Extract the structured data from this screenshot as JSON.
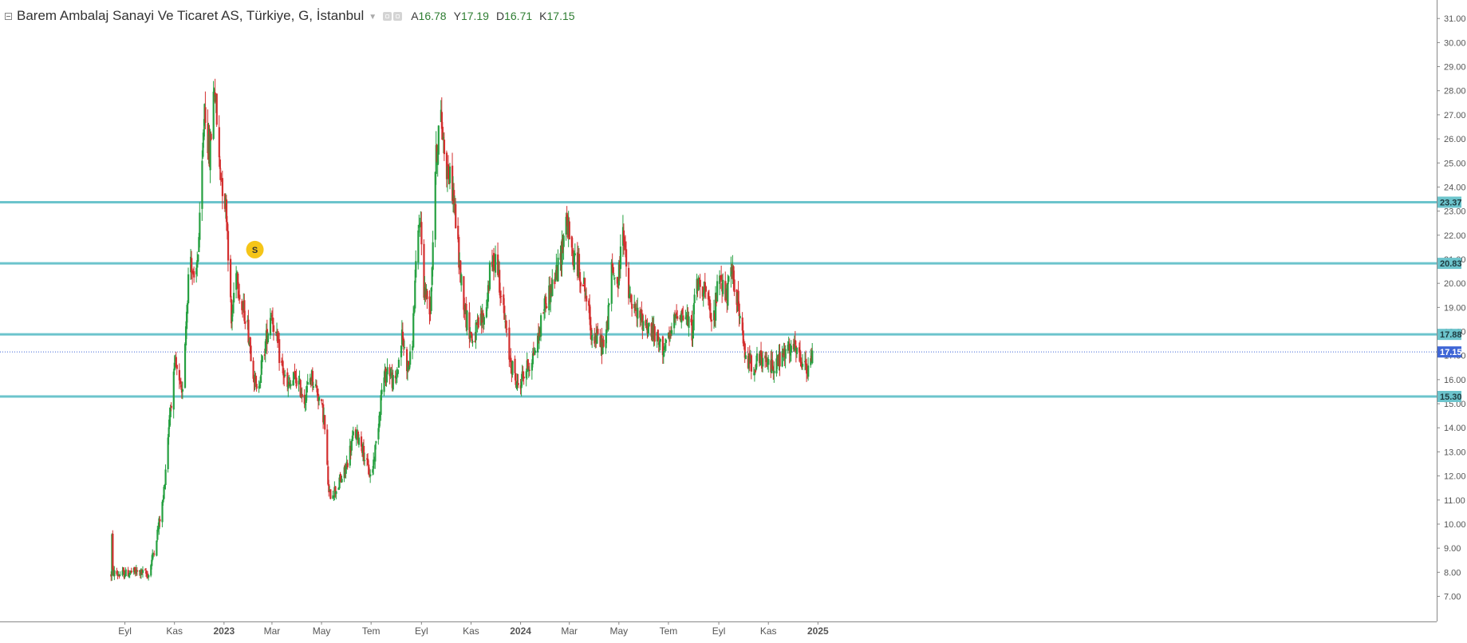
{
  "legend": {
    "title": "Barem Ambalaj Sanayi Ve Ticaret AS, Türkiye, G, İstanbul",
    "open_label": "A",
    "open": "16.78",
    "high_label": "Y",
    "high": "17.19",
    "low_label": "D",
    "low": "16.71",
    "close_label": "K",
    "close": "17.15",
    "icons": [
      "collapse-icon",
      "dropdown-caret-icon",
      "settings-icon",
      "hide-icon"
    ]
  },
  "colors": {
    "up": "#26a041",
    "down": "#d32f2f",
    "hline": "#6cc4cc",
    "last_price": "#3f66d6",
    "dividend_marker": "#f5c518",
    "axis_text": "#555555"
  },
  "chart_data": {
    "type": "candlestick",
    "title": "",
    "x_axis": {
      "tick_labels": [
        "Eyl",
        "Kas",
        "2023",
        "Mar",
        "May",
        "Tem",
        "Eyl",
        "Kas",
        "2024",
        "Mar",
        "May",
        "Tem",
        "Eyl",
        "Kas",
        "2025"
      ],
      "bold_labels": [
        "2023",
        "2024",
        "2025"
      ]
    },
    "y_axis": {
      "position": "right",
      "range": [
        6.5,
        31.6
      ],
      "tick_labels": [
        "7.00",
        "8.00",
        "9.00",
        "10.00",
        "11.00",
        "12.00",
        "13.00",
        "14.00",
        "15.00",
        "16.00",
        "17.00",
        "18.00",
        "19.00",
        "20.00",
        "21.00",
        "22.00",
        "23.00",
        "24.00",
        "25.00",
        "26.00",
        "27.00",
        "28.00",
        "29.00",
        "30.00",
        "31.00"
      ]
    },
    "horizontal_lines": [
      {
        "value": 23.37,
        "label": "23.37"
      },
      {
        "value": 20.83,
        "label": "20.83"
      },
      {
        "value": 17.88,
        "label": "17.88"
      },
      {
        "value": 15.3,
        "label": "15.30"
      }
    ],
    "last_price": {
      "value": 17.15,
      "label": "17.15"
    },
    "dividend_marker": {
      "label": "S",
      "date": "2023-02",
      "price": 21.4
    },
    "grid": false,
    "series_anchors": [
      [
        "2022-08-15",
        7.9
      ],
      [
        "2022-08-16",
        9.5
      ],
      [
        "2022-08-17",
        8.0
      ],
      [
        "2022-08-25",
        7.9
      ],
      [
        "2022-09-10",
        8.0
      ],
      [
        "2022-09-20",
        8.0
      ],
      [
        "2022-09-30",
        7.9
      ],
      [
        "2022-10-08",
        9.1
      ],
      [
        "2022-10-18",
        11.0
      ],
      [
        "2022-10-26",
        14.6
      ],
      [
        "2022-11-02",
        16.6
      ],
      [
        "2022-11-10",
        15.2
      ],
      [
        "2022-11-20",
        21.5
      ],
      [
        "2022-11-26",
        19.5
      ],
      [
        "2022-12-03",
        22.9
      ],
      [
        "2022-12-08",
        27.5
      ],
      [
        "2022-12-14",
        25.2
      ],
      [
        "2022-12-20",
        28.4
      ],
      [
        "2022-12-26",
        25.0
      ],
      [
        "2023-01-04",
        23.0
      ],
      [
        "2023-01-10",
        18.3
      ],
      [
        "2023-01-16",
        20.8
      ],
      [
        "2023-01-22",
        19.0
      ],
      [
        "2023-01-28",
        18.7
      ],
      [
        "2023-02-10",
        15.4
      ],
      [
        "2023-02-20",
        17.3
      ],
      [
        "2023-02-28",
        18.9
      ],
      [
        "2023-03-10",
        17.0
      ],
      [
        "2023-03-20",
        15.6
      ],
      [
        "2023-03-30",
        16.1
      ],
      [
        "2023-04-10",
        15.2
      ],
      [
        "2023-04-18",
        16.2
      ],
      [
        "2023-04-26",
        15.5
      ],
      [
        "2023-05-04",
        14.4
      ],
      [
        "2023-05-10",
        11.2
      ],
      [
        "2023-05-20",
        11.5
      ],
      [
        "2023-05-30",
        12.2
      ],
      [
        "2023-06-10",
        13.8
      ],
      [
        "2023-06-18",
        13.5
      ],
      [
        "2023-06-26",
        12.4
      ],
      [
        "2023-07-01",
        11.9
      ],
      [
        "2023-07-08",
        13.6
      ],
      [
        "2023-07-14",
        15.6
      ],
      [
        "2023-07-22",
        16.6
      ],
      [
        "2023-07-30",
        15.6
      ],
      [
        "2023-08-08",
        17.8
      ],
      [
        "2023-08-15",
        16.5
      ],
      [
        "2023-08-20",
        17.0
      ],
      [
        "2023-08-24",
        20.0
      ],
      [
        "2023-08-30",
        22.9
      ],
      [
        "2023-09-04",
        19.8
      ],
      [
        "2023-09-12",
        19.0
      ],
      [
        "2023-09-18",
        24.8
      ],
      [
        "2023-09-24",
        27.1
      ],
      [
        "2023-10-02",
        24.8
      ],
      [
        "2023-10-10",
        23.8
      ],
      [
        "2023-10-18",
        20.6
      ],
      [
        "2023-10-26",
        18.6
      ],
      [
        "2023-11-03",
        17.6
      ],
      [
        "2023-11-12",
        18.4
      ],
      [
        "2023-11-18",
        18.6
      ],
      [
        "2023-11-24",
        20.4
      ],
      [
        "2023-12-02",
        21.2
      ],
      [
        "2023-12-10",
        19.0
      ],
      [
        "2023-12-18",
        17.0
      ],
      [
        "2023-12-28",
        15.7
      ],
      [
        "2024-01-06",
        16.3
      ],
      [
        "2024-01-14",
        16.8
      ],
      [
        "2024-01-22",
        17.6
      ],
      [
        "2024-01-30",
        19.1
      ],
      [
        "2024-02-10",
        20.0
      ],
      [
        "2024-02-18",
        20.8
      ],
      [
        "2024-02-26",
        22.8
      ],
      [
        "2024-03-04",
        21.2
      ],
      [
        "2024-03-12",
        20.7
      ],
      [
        "2024-03-20",
        19.8
      ],
      [
        "2024-03-28",
        18.0
      ],
      [
        "2024-04-06",
        17.6
      ],
      [
        "2024-04-14",
        17.3
      ],
      [
        "2024-04-22",
        20.5
      ],
      [
        "2024-04-30",
        20.0
      ],
      [
        "2024-05-06",
        22.6
      ],
      [
        "2024-05-12",
        19.5
      ],
      [
        "2024-05-22",
        18.7
      ],
      [
        "2024-06-02",
        18.4
      ],
      [
        "2024-06-12",
        17.9
      ],
      [
        "2024-06-22",
        17.3
      ],
      [
        "2024-07-02",
        17.6
      ],
      [
        "2024-07-12",
        18.9
      ],
      [
        "2024-07-22",
        18.6
      ],
      [
        "2024-07-30",
        18.0
      ],
      [
        "2024-08-04",
        20.0
      ],
      [
        "2024-08-14",
        19.9
      ],
      [
        "2024-08-24",
        18.1
      ],
      [
        "2024-09-02",
        20.5
      ],
      [
        "2024-09-10",
        19.4
      ],
      [
        "2024-09-18",
        20.5
      ],
      [
        "2024-09-26",
        18.8
      ],
      [
        "2024-10-02",
        17.1
      ],
      [
        "2024-10-12",
        16.6
      ],
      [
        "2024-10-22",
        16.8
      ],
      [
        "2024-11-02",
        16.6
      ],
      [
        "2024-11-12",
        16.7
      ],
      [
        "2024-11-22",
        17.1
      ],
      [
        "2024-12-02",
        17.3
      ],
      [
        "2024-12-12",
        16.7
      ],
      [
        "2024-12-20",
        16.3
      ],
      [
        "2024-12-26",
        17.15
      ]
    ]
  }
}
